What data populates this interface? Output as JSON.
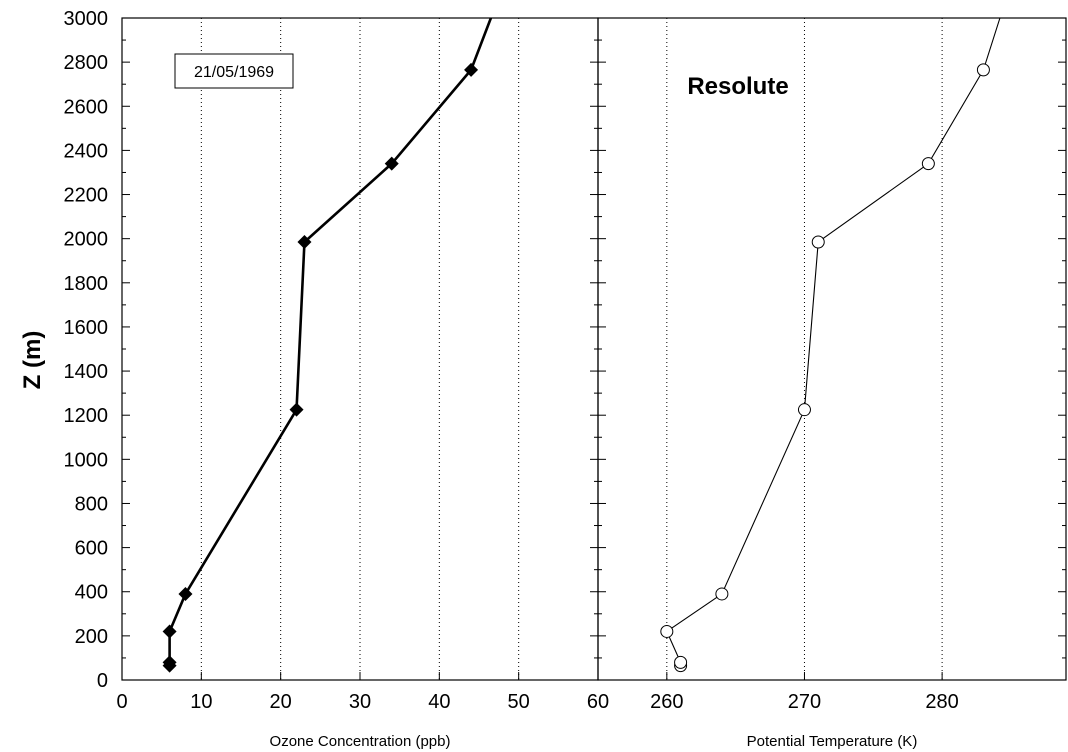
{
  "chart_data": {
    "type": "line",
    "ylabel": "Z (m)",
    "ylim": [
      0,
      3000
    ],
    "yticks": [
      0,
      200,
      400,
      600,
      800,
      1000,
      1200,
      1400,
      1600,
      1800,
      2000,
      2200,
      2400,
      2600,
      2800,
      3000
    ],
    "date_label": "21/05/1969",
    "station_label": "Resolute",
    "panels": [
      {
        "xlabel": "Ozone Concentration (ppb)",
        "xlim": [
          0,
          60
        ],
        "xticks": [
          0,
          10,
          20,
          30,
          40,
          50,
          60
        ],
        "grid": "vertical dotted",
        "series": [
          {
            "marker": "filled-diamond",
            "points": [
              [
                6,
                65
              ],
              [
                6,
                80
              ],
              [
                6,
                220
              ],
              [
                8,
                390
              ],
              [
                22,
                1225
              ],
              [
                23,
                1985
              ],
              [
                34,
                2340
              ],
              [
                44,
                2765
              ],
              [
                46.5,
                3000
              ]
            ]
          }
        ]
      },
      {
        "xlabel": "Potential Temperature (K)",
        "xlim": [
          255,
          289
        ],
        "xticks": [
          260,
          270,
          280
        ],
        "grid": "vertical dotted",
        "series": [
          {
            "marker": "open-circle",
            "points": [
              [
                261,
                65
              ],
              [
                261,
                80
              ],
              [
                260,
                220
              ],
              [
                264,
                390
              ],
              [
                270,
                1225
              ],
              [
                271,
                1985
              ],
              [
                279,
                2340
              ],
              [
                283,
                2765
              ],
              [
                284.2,
                3000
              ]
            ]
          }
        ]
      }
    ]
  }
}
